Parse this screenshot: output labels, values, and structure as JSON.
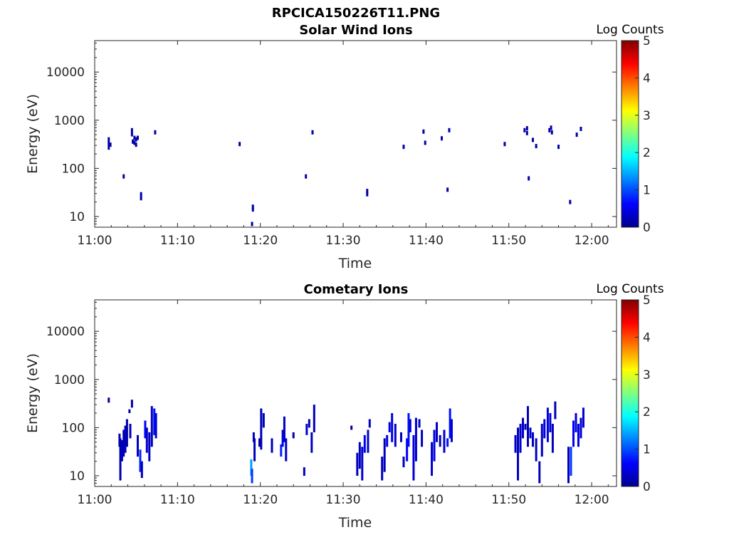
{
  "figure": {
    "filename": "RPCICA150226T11.PNG"
  },
  "chart_data": [
    {
      "type": "heatmap",
      "title": "Solar Wind Ions",
      "xlabel": "Time",
      "ylabel": "Energy (eV)",
      "x_tick_labels": [
        "11:00",
        "11:10",
        "11:20",
        "11:30",
        "11:40",
        "11:50",
        "12:00"
      ],
      "x_range_minutes_after_11_00": [
        0,
        63
      ],
      "y_scale": "log",
      "y_range": [
        6,
        45000
      ],
      "y_ticks": [
        10,
        100,
        1000,
        10000
      ],
      "y_tick_labels": [
        "10",
        "100",
        "1000",
        "10000"
      ],
      "colorbar": {
        "title": "Log Counts",
        "range": [
          0,
          5
        ],
        "tick_labels": [
          "0",
          "1",
          "2",
          "3",
          "4",
          "5"
        ],
        "colormap": "jet"
      },
      "points": [
        [
          1.7,
          330,
          0.2
        ],
        [
          1.7,
          270,
          0.2
        ],
        [
          1.7,
          400,
          0.2
        ],
        [
          1.9,
          310,
          0.2
        ],
        [
          3.5,
          68,
          0.2
        ],
        [
          4.5,
          620,
          0.2
        ],
        [
          4.5,
          510,
          0.2
        ],
        [
          4.6,
          360,
          0.2
        ],
        [
          4.8,
          340,
          0.2
        ],
        [
          4.8,
          430,
          0.2
        ],
        [
          5.0,
          400,
          0.2
        ],
        [
          5.0,
          310,
          0.2
        ],
        [
          5.2,
          430,
          0.2
        ],
        [
          5.6,
          24,
          0.2
        ],
        [
          5.6,
          29,
          0.2
        ],
        [
          7.3,
          560,
          0.2
        ],
        [
          17.5,
          320,
          0.2
        ],
        [
          19.1,
          16,
          0.2
        ],
        [
          19.1,
          14,
          0.2
        ],
        [
          19.0,
          7,
          0.2
        ],
        [
          25.5,
          68,
          0.2
        ],
        [
          26.3,
          560,
          0.2
        ],
        [
          32.9,
          34,
          0.2
        ],
        [
          32.9,
          29,
          0.2
        ],
        [
          37.3,
          280,
          0.2
        ],
        [
          39.7,
          580,
          0.2
        ],
        [
          39.9,
          340,
          0.2
        ],
        [
          41.9,
          420,
          0.2
        ],
        [
          42.6,
          36,
          0.2
        ],
        [
          42.8,
          620,
          0.2
        ],
        [
          49.5,
          320,
          0.2
        ],
        [
          51.9,
          620,
          0.2
        ],
        [
          52.2,
          680,
          0.2
        ],
        [
          52.2,
          540,
          0.2
        ],
        [
          52.4,
          62,
          0.2
        ],
        [
          52.9,
          390,
          0.2
        ],
        [
          53.3,
          290,
          0.2
        ],
        [
          54.9,
          620,
          0.2
        ],
        [
          55.1,
          700,
          0.2
        ],
        [
          55.2,
          560,
          0.2
        ],
        [
          56.0,
          280,
          0.2
        ],
        [
          57.4,
          20,
          0.2
        ],
        [
          58.2,
          500,
          0.2
        ],
        [
          58.7,
          660,
          0.2
        ]
      ]
    },
    {
      "type": "heatmap",
      "title": "Cometary Ions",
      "xlabel": "Time",
      "ylabel": "Energy (eV)",
      "x_tick_labels": [
        "11:00",
        "11:10",
        "11:20",
        "11:30",
        "11:40",
        "11:50",
        "12:00"
      ],
      "x_range_minutes_after_11_00": [
        0,
        63
      ],
      "y_scale": "log",
      "y_range": [
        6,
        45000
      ],
      "y_ticks": [
        10,
        100,
        1000,
        10000
      ],
      "y_tick_labels": [
        "10",
        "100",
        "1000",
        "10000"
      ],
      "colorbar": {
        "title": "Log Counts",
        "range": [
          0,
          5
        ],
        "tick_labels": [
          "0",
          "1",
          "2",
          "3",
          "4",
          "5"
        ],
        "colormap": "jet"
      },
      "columns": [
        [
          1.7,
          330,
          420,
          0.2
        ],
        [
          3.0,
          40,
          75,
          0.2
        ],
        [
          3.1,
          8,
          60,
          0.2
        ],
        [
          3.3,
          20,
          55,
          0.3
        ],
        [
          3.5,
          25,
          90,
          0.25
        ],
        [
          3.7,
          30,
          110,
          0.3
        ],
        [
          3.9,
          40,
          150,
          0.2
        ],
        [
          4.2,
          200,
          240,
          0.2
        ],
        [
          4.3,
          60,
          120,
          0.3
        ],
        [
          4.5,
          260,
          380,
          0.2
        ],
        [
          5.2,
          25,
          70,
          0.3
        ],
        [
          5.5,
          12,
          35,
          0.8
        ],
        [
          5.7,
          9,
          20,
          0.3
        ],
        [
          6.1,
          60,
          140,
          0.6
        ],
        [
          6.3,
          30,
          100,
          0.4
        ],
        [
          6.6,
          20,
          80,
          0.3
        ],
        [
          6.9,
          40,
          280,
          0.3
        ],
        [
          7.2,
          70,
          250,
          0.7
        ],
        [
          7.4,
          60,
          200,
          0.4
        ],
        [
          18.9,
          10,
          22,
          1.4
        ],
        [
          19.0,
          7,
          14,
          0.9
        ],
        [
          19.2,
          50,
          80,
          0.3
        ],
        [
          19.3,
          20,
          60,
          0.3
        ],
        [
          19.9,
          40,
          60,
          0.2
        ],
        [
          20.1,
          35,
          250,
          0.3
        ],
        [
          20.4,
          100,
          200,
          0.3
        ],
        [
          21.4,
          30,
          60,
          0.3
        ],
        [
          22.5,
          25,
          45,
          0.8
        ],
        [
          22.7,
          40,
          90,
          0.5
        ],
        [
          22.9,
          50,
          170,
          0.3
        ],
        [
          23.1,
          20,
          60,
          0.4
        ],
        [
          24.0,
          60,
          80,
          0.2
        ],
        [
          25.3,
          10,
          15,
          0.3
        ],
        [
          25.6,
          70,
          120,
          0.4
        ],
        [
          25.9,
          100,
          150,
          0.3
        ],
        [
          26.2,
          30,
          80,
          0.3
        ],
        [
          26.5,
          80,
          300,
          0.3
        ],
        [
          31.0,
          90,
          110,
          0.2
        ],
        [
          31.7,
          10,
          30,
          0.3
        ],
        [
          32.0,
          14,
          50,
          0.3
        ],
        [
          32.3,
          8,
          40,
          0.4
        ],
        [
          32.6,
          30,
          70,
          0.5
        ],
        [
          33.0,
          30,
          90,
          0.4
        ],
        [
          33.2,
          100,
          150,
          0.3
        ],
        [
          34.7,
          8,
          25,
          0.3
        ],
        [
          35.0,
          12,
          60,
          0.3
        ],
        [
          35.3,
          40,
          70,
          0.5
        ],
        [
          35.6,
          80,
          130,
          0.4
        ],
        [
          35.9,
          50,
          200,
          0.5
        ],
        [
          36.3,
          40,
          120,
          0.4
        ],
        [
          37.0,
          50,
          80,
          0.3
        ],
        [
          37.3,
          15,
          25,
          0.3
        ],
        [
          37.7,
          20,
          60,
          0.6
        ],
        [
          37.9,
          40,
          200,
          0.7
        ],
        [
          38.1,
          80,
          150,
          0.4
        ],
        [
          38.5,
          8,
          70,
          0.4
        ],
        [
          38.8,
          20,
          160,
          0.4
        ],
        [
          39.2,
          100,
          150,
          0.3
        ],
        [
          39.5,
          40,
          90,
          0.3
        ],
        [
          40.7,
          10,
          50,
          0.4
        ],
        [
          41.0,
          20,
          90,
          0.5
        ],
        [
          41.3,
          50,
          130,
          0.3
        ],
        [
          41.7,
          40,
          70,
          0.3
        ],
        [
          42.2,
          30,
          90,
          0.4
        ],
        [
          42.6,
          40,
          60,
          0.7
        ],
        [
          42.9,
          60,
          250,
          0.7
        ],
        [
          43.1,
          50,
          150,
          0.4
        ],
        [
          50.8,
          30,
          70,
          0.3
        ],
        [
          51.1,
          8,
          100,
          0.3
        ],
        [
          51.4,
          30,
          120,
          0.4
        ],
        [
          51.7,
          60,
          160,
          0.3
        ],
        [
          52.0,
          90,
          120,
          0.3
        ],
        [
          52.3,
          40,
          280,
          0.3
        ],
        [
          52.6,
          60,
          100,
          0.4
        ],
        [
          52.9,
          40,
          80,
          0.3
        ],
        [
          53.3,
          20,
          60,
          0.3
        ],
        [
          53.7,
          7,
          20,
          0.3
        ],
        [
          54.0,
          25,
          120,
          0.3
        ],
        [
          54.3,
          60,
          150,
          0.5
        ],
        [
          54.7,
          50,
          260,
          0.5
        ],
        [
          55.0,
          80,
          200,
          0.4
        ],
        [
          55.3,
          30,
          120,
          0.3
        ],
        [
          55.6,
          150,
          350,
          0.3
        ],
        [
          57.2,
          7,
          40,
          0.3
        ],
        [
          57.5,
          10,
          40,
          0.9
        ],
        [
          57.8,
          40,
          140,
          0.6
        ],
        [
          58.1,
          80,
          200,
          0.4
        ],
        [
          58.4,
          40,
          120,
          0.5
        ],
        [
          58.7,
          60,
          160,
          0.4
        ],
        [
          59.0,
          100,
          260,
          0.4
        ]
      ]
    }
  ]
}
